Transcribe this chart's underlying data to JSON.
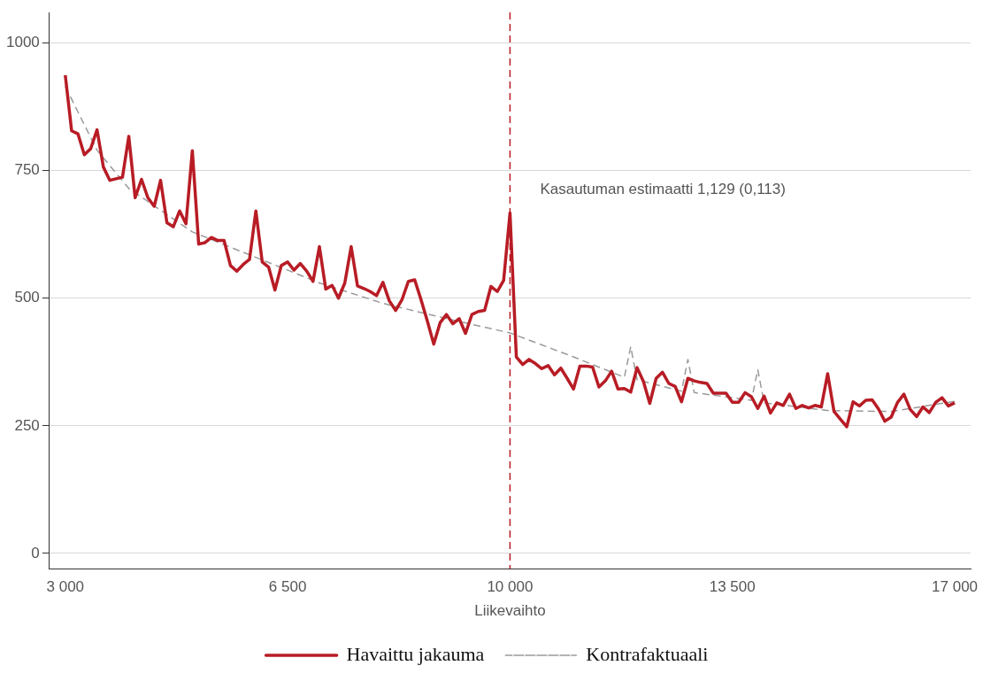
{
  "chart_data": {
    "type": "line",
    "xlabel": "Liikevaihto",
    "xlim": [
      2750,
      17250
    ],
    "xticks": [
      {
        "value": 3000,
        "label": "3 000"
      },
      {
        "value": 6500,
        "label": "6 500"
      },
      {
        "value": 10000,
        "label": "10 000"
      },
      {
        "value": 13500,
        "label": "13 500"
      },
      {
        "value": 17000,
        "label": "17 000"
      }
    ],
    "ylim": [
      -30,
      1060
    ],
    "yticks": [
      0,
      250,
      500,
      750,
      1000
    ],
    "grid": "y",
    "legend": "bottom",
    "marker": "none",
    "ref_lines": [
      {
        "axis": "x",
        "value": 10000,
        "color": "#b81c25",
        "line_style": "dashed"
      }
    ],
    "annotations": [
      "Kasautuman estimaatti 1,129 (0,113)"
    ],
    "series": [
      {
        "name": "Havaittu jakauma",
        "color": "#b81c25",
        "line_style": "solid",
        "x": [
          3000,
          3100,
          3200,
          3300,
          3400,
          3500,
          3600,
          3700,
          3800,
          3900,
          4000,
          4100,
          4200,
          4300,
          4400,
          4500,
          4600,
          4700,
          4800,
          4900,
          5000,
          5100,
          5200,
          5300,
          5400,
          5500,
          5600,
          5700,
          5800,
          5900,
          6000,
          6100,
          6200,
          6300,
          6400,
          6500,
          6600,
          6700,
          6800,
          6900,
          7000,
          7100,
          7200,
          7300,
          7400,
          7500,
          7600,
          7700,
          7800,
          7900,
          8000,
          8100,
          8200,
          8300,
          8400,
          8500,
          8600,
          8700,
          8800,
          8900,
          9000,
          9100,
          9200,
          9300,
          9400,
          9500,
          9600,
          9700,
          9800,
          9900,
          10000,
          10100,
          10200,
          10300,
          10400,
          10500,
          10600,
          10700,
          10800,
          10900,
          11000,
          11100,
          11200,
          11300,
          11400,
          11500,
          11600,
          11700,
          11800,
          11900,
          12000,
          12100,
          12200,
          12300,
          12400,
          12500,
          12600,
          12700,
          12800,
          12900,
          13000,
          13100,
          13200,
          13300,
          13400,
          13500,
          13600,
          13700,
          13800,
          13900,
          14000,
          14100,
          14200,
          14300,
          14400,
          14500,
          14600,
          14700,
          14800,
          14900,
          15000,
          15100,
          15200,
          15300,
          15400,
          15500,
          15600,
          15700,
          15800,
          15900,
          16000,
          16100,
          16200,
          16300,
          16400,
          16500,
          16600,
          16700,
          16800,
          16900,
          17000
        ],
        "values": [
          937,
          828,
          822,
          781,
          793,
          830,
          757,
          731,
          734,
          737,
          817,
          697,
          733,
          697,
          680,
          731,
          648,
          640,
          671,
          646,
          789,
          606,
          609,
          619,
          613,
          613,
          564,
          553,
          566,
          576,
          671,
          571,
          561,
          516,
          564,
          571,
          555,
          568,
          553,
          533,
          601,
          518,
          525,
          500,
          530,
          601,
          524,
          519,
          513,
          505,
          531,
          495,
          476,
          497,
          533,
          536,
          497,
          455,
          410,
          452,
          468,
          450,
          460,
          431,
          468,
          474,
          476,
          523,
          513,
          535,
          667,
          385,
          370,
          380,
          372,
          362,
          368,
          350,
          363,
          343,
          322,
          367,
          367,
          365,
          326,
          338,
          357,
          322,
          323,
          316,
          364,
          337,
          294,
          343,
          355,
          333,
          327,
          297,
          343,
          338,
          335,
          333,
          314,
          314,
          314,
          296,
          296,
          315,
          307,
          284,
          308,
          275,
          295,
          290,
          312,
          284,
          290,
          285,
          290,
          287,
          352,
          278,
          263,
          248,
          297,
          289,
          300,
          301,
          283,
          259,
          267,
          296,
          312,
          282,
          268,
          287,
          276,
          296,
          305,
          289,
          295
        ]
      },
      {
        "name": "Kontrafaktuaali",
        "color": "#9a9a9a",
        "line_style": "dashed",
        "x": [
          3000,
          3500,
          4000,
          5000,
          6000,
          7000,
          8000,
          9000,
          10000,
          11000,
          11800,
          11900,
          12000,
          12700,
          12800,
          12900,
          13800,
          13900,
          14000,
          15000,
          16000,
          17000
        ],
        "values": [
          915,
          790,
          715,
          630,
          580,
          530,
          490,
          460,
          432,
          385,
          345,
          405,
          340,
          318,
          380,
          315,
          300,
          360,
          295,
          280,
          278,
          298
        ]
      }
    ]
  }
}
